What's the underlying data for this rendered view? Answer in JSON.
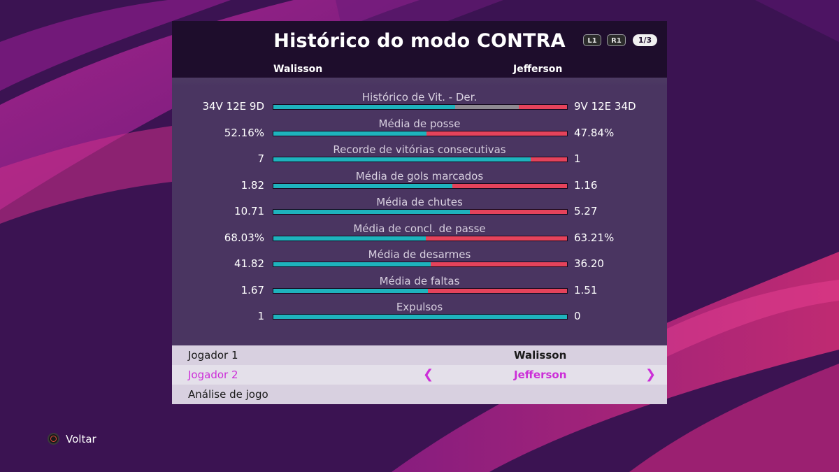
{
  "header": {
    "title": "Histórico do modo CONTRA",
    "button_l1": "L1",
    "button_r1": "R1",
    "page_indicator": "1/3",
    "player_left": "Walisson",
    "player_right": "Jefferson"
  },
  "colors": {
    "left_bar": "#1eb3bd",
    "right_bar": "#e5435b",
    "draw_bar": "#8f8a92",
    "highlight": "#cc2ed8"
  },
  "stats": [
    {
      "label": "Histórico de Vit. - Der.",
      "left": "34V 12E 9D",
      "right": "9V 12E 34D",
      "left_share": 0.6182,
      "draw_share": 0.2182
    },
    {
      "label": "Média de posse",
      "left": "52.16%",
      "right": "47.84%",
      "left_share": 0.5216,
      "draw_share": 0
    },
    {
      "label": "Recorde de vitórias consecutivas",
      "left": "7",
      "right": "1",
      "left_share": 0.875,
      "draw_share": 0
    },
    {
      "label": "Média de gols marcados",
      "left": "1.82",
      "right": "1.16",
      "left_share": 0.6107,
      "draw_share": 0
    },
    {
      "label": "Média de chutes",
      "left": "10.71",
      "right": "5.27",
      "left_share": 0.6702,
      "draw_share": 0
    },
    {
      "label": "Média de concl. de passe",
      "left": "68.03%",
      "right": "63.21%",
      "left_share": 0.5184,
      "draw_share": 0
    },
    {
      "label": "Média de desarmes",
      "left": "41.82",
      "right": "36.20",
      "left_share": 0.536,
      "draw_share": 0
    },
    {
      "label": "Média de faltas",
      "left": "1.67",
      "right": "1.51",
      "left_share": 0.5252,
      "draw_share": 0
    },
    {
      "label": "Expulsos",
      "left": "1",
      "right": "0",
      "left_share": 1.0,
      "draw_share": 0
    }
  ],
  "menu": {
    "player1_label": "Jogador 1",
    "player1_value": "Walisson",
    "player2_label": "Jogador 2",
    "player2_value": "Jefferson",
    "analysis_label": "Análise de jogo",
    "arrow_left": "❮",
    "arrow_right": "❯"
  },
  "footer": {
    "back_icon": "circle-button-icon",
    "back_label": "Voltar"
  }
}
